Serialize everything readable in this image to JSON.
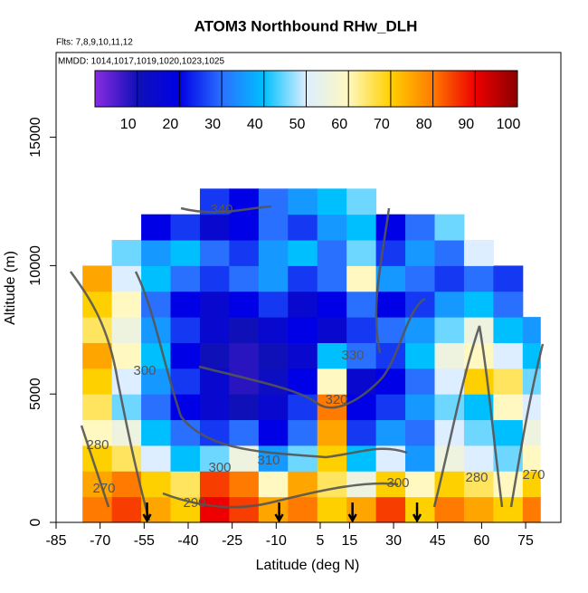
{
  "chart_data": {
    "type": "heatmap",
    "title": "ATOM3 Northbound RHw_DLH",
    "subtitle": "Flts: 7,8,9,10,11,12",
    "note": "MMDD: 1014,1017,1019,1020,1023,1025",
    "x_label": "Latitude (deg N)",
    "y_label": "Altitude (m)",
    "xlim": [
      -85,
      87
    ],
    "ylim": [
      0,
      18300
    ],
    "xticks": [
      -85,
      -70,
      -55,
      -40,
      -25,
      -10,
      5,
      15,
      30,
      45,
      60,
      75
    ],
    "yticks": [
      0,
      5000,
      10000,
      15000
    ],
    "x_edges": [
      -76,
      -66,
      -56,
      -46,
      -36,
      -26,
      -16,
      -6,
      4,
      14,
      24,
      34,
      44,
      54,
      64,
      74,
      80
    ],
    "y_edges": [
      0,
      1000,
      2000,
      3000,
      4000,
      5000,
      6000,
      7000,
      8000,
      9000,
      10000,
      11000,
      12000,
      13000
    ],
    "z": [
      [
        80,
        85,
        75,
        70,
        90,
        85,
        75,
        80,
        70,
        75,
        85,
        70,
        80,
        75,
        70,
        80
      ],
      [
        75,
        80,
        70,
        65,
        85,
        80,
        60,
        75,
        65,
        55,
        70,
        60,
        70,
        65,
        60,
        70
      ],
      [
        70,
        65,
        50,
        40,
        45,
        55,
        35,
        45,
        70,
        40,
        50,
        35,
        55,
        50,
        45,
        60
      ],
      [
        60,
        55,
        40,
        30,
        25,
        30,
        20,
        30,
        75,
        25,
        35,
        30,
        50,
        45,
        40,
        55
      ],
      [
        65,
        45,
        30,
        20,
        15,
        10,
        15,
        25,
        80,
        20,
        25,
        35,
        45,
        40,
        60,
        50
      ],
      [
        70,
        50,
        35,
        25,
        15,
        8,
        12,
        20,
        60,
        15,
        20,
        30,
        50,
        70,
        65,
        45
      ],
      [
        75,
        60,
        40,
        20,
        10,
        8,
        10,
        15,
        40,
        30,
        25,
        40,
        55,
        60,
        50,
        40
      ],
      [
        65,
        55,
        35,
        25,
        15,
        10,
        15,
        20,
        15,
        25,
        30,
        35,
        45,
        55,
        40,
        35
      ],
      [
        70,
        60,
        30,
        20,
        15,
        20,
        25,
        15,
        20,
        30,
        20,
        25,
        35,
        40,
        30,
        null
      ],
      [
        75,
        50,
        40,
        30,
        25,
        30,
        35,
        25,
        30,
        60,
        35,
        30,
        25,
        30,
        25,
        null
      ],
      [
        null,
        45,
        35,
        40,
        30,
        25,
        35,
        40,
        30,
        45,
        25,
        35,
        30,
        50,
        null,
        null
      ],
      [
        null,
        null,
        20,
        25,
        15,
        20,
        30,
        25,
        35,
        40,
        20,
        30,
        45,
        null,
        null,
        null
      ],
      [
        null,
        null,
        null,
        null,
        25,
        20,
        30,
        35,
        40,
        45,
        null,
        null,
        null,
        null,
        null,
        null
      ]
    ],
    "colorbar": {
      "lim": [
        0,
        100
      ],
      "ticks": [
        10,
        20,
        30,
        40,
        50,
        60,
        70,
        80,
        90,
        100
      ],
      "colors": [
        "#8a2be2",
        "#1010b8",
        "#0000e6",
        "#2a70ff",
        "#00bfff",
        "#dceeff",
        "#fff8c0",
        "#ffd000",
        "#ff7a00",
        "#ee0000",
        "#8b0000"
      ]
    },
    "contour_labels": [
      "340",
      "330",
      "320",
      "310",
      "300",
      "300",
      "300",
      "290",
      "280",
      "270",
      "280",
      "270"
    ],
    "arrows": [
      -54,
      -9,
      16,
      38
    ]
  }
}
